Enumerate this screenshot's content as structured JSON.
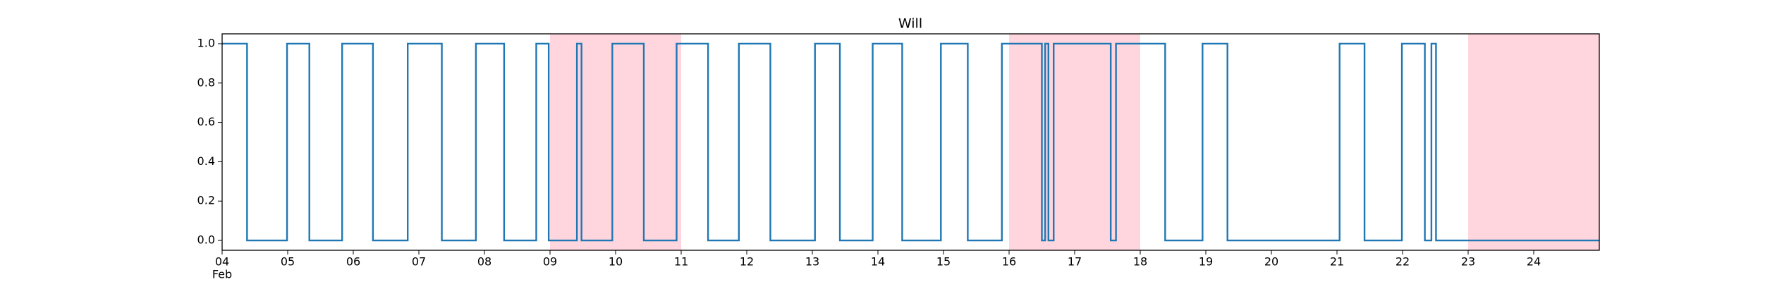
{
  "chart_data": {
    "type": "line",
    "title": "Will",
    "drawstyle": "steps-post",
    "x": [
      4,
      4.38,
      4.99,
      5.33,
      5.83,
      6.3,
      6.83,
      7.35,
      7.87,
      8.3,
      8.79,
      8.98,
      9.41,
      9.48,
      9.95,
      10.43,
      10.93,
      11.41,
      11.88,
      12.36,
      13.04,
      13.42,
      13.92,
      14.37,
      14.96,
      15.37,
      15.89,
      16.5,
      16.55,
      16.6,
      16.68,
      17.55,
      17.63,
      18.38,
      18.95,
      19.33,
      21.04,
      21.42,
      21.99,
      22.34,
      22.44,
      22.51,
      25
    ],
    "series": [
      {
        "color": "#1f77b4",
        "values": [
          1,
          0,
          1,
          0,
          1,
          0,
          1,
          0,
          1,
          0,
          1,
          0,
          1,
          0,
          1,
          0,
          1,
          0,
          1,
          0,
          1,
          0,
          1,
          0,
          1,
          0,
          1,
          0,
          1,
          0,
          1,
          0,
          1,
          0,
          1,
          0,
          1,
          0,
          1,
          0,
          1,
          0,
          0
        ]
      }
    ],
    "spans": [
      [
        9,
        11
      ],
      [
        16,
        18
      ],
      [
        23,
        25
      ]
    ],
    "span_color": "#ffd6de",
    "xlim": [
      4,
      25
    ],
    "ylim": [
      -0.05,
      1.05
    ],
    "xticks": [
      {
        "value": 4,
        "label": "04"
      },
      {
        "value": 5,
        "label": "05"
      },
      {
        "value": 6,
        "label": "06"
      },
      {
        "value": 7,
        "label": "07"
      },
      {
        "value": 8,
        "label": "08"
      },
      {
        "value": 9,
        "label": "09"
      },
      {
        "value": 10,
        "label": "10"
      },
      {
        "value": 11,
        "label": "11"
      },
      {
        "value": 12,
        "label": "12"
      },
      {
        "value": 13,
        "label": "13"
      },
      {
        "value": 14,
        "label": "14"
      },
      {
        "value": 15,
        "label": "15"
      },
      {
        "value": 16,
        "label": "16"
      },
      {
        "value": 17,
        "label": "17"
      },
      {
        "value": 18,
        "label": "18"
      },
      {
        "value": 19,
        "label": "19"
      },
      {
        "value": 20,
        "label": "20"
      },
      {
        "value": 21,
        "label": "21"
      },
      {
        "value": 22,
        "label": "22"
      },
      {
        "value": 23,
        "label": "23"
      },
      {
        "value": 24,
        "label": "24"
      }
    ],
    "x_month_label": "Feb",
    "yticks": [
      {
        "value": 0,
        "label": "0.0"
      },
      {
        "value": 0.2,
        "label": "0.2"
      },
      {
        "value": 0.4,
        "label": "0.4"
      },
      {
        "value": 0.6,
        "label": "0.6"
      },
      {
        "value": 0.8,
        "label": "0.8"
      },
      {
        "value": 1,
        "label": "1.0"
      }
    ]
  }
}
